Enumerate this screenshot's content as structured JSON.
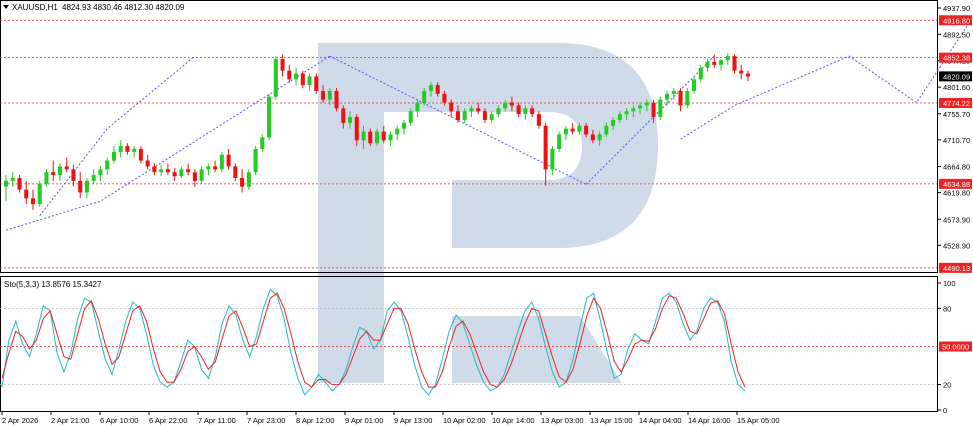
{
  "chart_data": {
    "type": "candlestick",
    "symbol": "XAUUSD,H1",
    "ohlc_text": "4824.93 4830.46 4812.30 4820.09",
    "main_panel": {
      "ylim": [
        4483,
        4950
      ],
      "y_ticks": [
        "4937.90",
        "4892.50",
        "4847.10",
        "4801.60",
        "4755.70",
        "4710.70",
        "4664.80",
        "4619.80",
        "4573.90",
        "4528.90"
      ],
      "levels": [
        {
          "label": "4916.80",
          "value": 4916.8
        },
        {
          "label": "4852.38",
          "value": 4852.38
        },
        {
          "label": "4774.22",
          "value": 4774.22
        },
        {
          "label": "4634.88",
          "value": 4634.88
        },
        {
          "label": "4490.13",
          "value": 4490.13
        }
      ],
      "current_price": {
        "label": "4820.09",
        "value": 4820.09
      },
      "candles": [
        [
          4630,
          4650,
          4605,
          4640
        ],
        [
          4640,
          4655,
          4630,
          4645
        ],
        [
          4645,
          4650,
          4620,
          4625
        ],
        [
          4625,
          4640,
          4600,
          4610
        ],
        [
          4610,
          4625,
          4590,
          4600
        ],
        [
          4600,
          4640,
          4595,
          4635
        ],
        [
          4635,
          4660,
          4630,
          4655
        ],
        [
          4655,
          4675,
          4640,
          4650
        ],
        [
          4650,
          4670,
          4640,
          4665
        ],
        [
          4665,
          4680,
          4655,
          4660
        ],
        [
          4660,
          4668,
          4630,
          4640
        ],
        [
          4640,
          4655,
          4610,
          4620
        ],
        [
          4620,
          4645,
          4610,
          4640
        ],
        [
          4640,
          4660,
          4635,
          4650
        ],
        [
          4650,
          4665,
          4640,
          4660
        ],
        [
          4660,
          4680,
          4650,
          4675
        ],
        [
          4675,
          4700,
          4670,
          4690
        ],
        [
          4690,
          4710,
          4680,
          4700
        ],
        [
          4700,
          4705,
          4685,
          4690
        ],
        [
          4690,
          4700,
          4680,
          4695
        ],
        [
          4695,
          4700,
          4670,
          4675
        ],
        [
          4675,
          4685,
          4660,
          4665
        ],
        [
          4665,
          4670,
          4650,
          4655
        ],
        [
          4655,
          4668,
          4648,
          4660
        ],
        [
          4660,
          4670,
          4650,
          4655
        ],
        [
          4655,
          4662,
          4640,
          4648
        ],
        [
          4648,
          4665,
          4645,
          4660
        ],
        [
          4660,
          4670,
          4650,
          4655
        ],
        [
          4655,
          4660,
          4630,
          4640
        ],
        [
          4640,
          4665,
          4635,
          4660
        ],
        [
          4660,
          4670,
          4650,
          4665
        ],
        [
          4665,
          4675,
          4655,
          4660
        ],
        [
          4660,
          4690,
          4655,
          4685
        ],
        [
          4685,
          4695,
          4660,
          4665
        ],
        [
          4665,
          4670,
          4640,
          4645
        ],
        [
          4645,
          4660,
          4620,
          4630
        ],
        [
          4630,
          4660,
          4625,
          4655
        ],
        [
          4655,
          4700,
          4650,
          4695
        ],
        [
          4695,
          4720,
          4690,
          4715
        ],
        [
          4715,
          4790,
          4710,
          4785
        ],
        [
          4785,
          4855,
          4780,
          4850
        ],
        [
          4850,
          4858,
          4820,
          4830
        ],
        [
          4830,
          4840,
          4810,
          4815
        ],
        [
          4815,
          4835,
          4805,
          4825
        ],
        [
          4825,
          4830,
          4800,
          4805
        ],
        [
          4805,
          4825,
          4795,
          4820
        ],
        [
          4820,
          4825,
          4790,
          4795
        ],
        [
          4795,
          4805,
          4775,
          4780
        ],
        [
          4780,
          4800,
          4770,
          4795
        ],
        [
          4795,
          4800,
          4760,
          4765
        ],
        [
          4765,
          4770,
          4730,
          4740
        ],
        [
          4740,
          4760,
          4730,
          4750
        ],
        [
          4750,
          4755,
          4700,
          4710
        ],
        [
          4710,
          4735,
          4695,
          4725
        ],
        [
          4725,
          4730,
          4700,
          4705
        ],
        [
          4705,
          4730,
          4700,
          4725
        ],
        [
          4725,
          4735,
          4705,
          4710
        ],
        [
          4710,
          4725,
          4700,
          4720
        ],
        [
          4720,
          4735,
          4710,
          4730
        ],
        [
          4730,
          4745,
          4720,
          4740
        ],
        [
          4740,
          4765,
          4735,
          4760
        ],
        [
          4760,
          4780,
          4750,
          4775
        ],
        [
          4775,
          4800,
          4770,
          4795
        ],
        [
          4795,
          4810,
          4785,
          4805
        ],
        [
          4805,
          4810,
          4785,
          4790
        ],
        [
          4790,
          4795,
          4770,
          4775
        ],
        [
          4775,
          4780,
          4750,
          4760
        ],
        [
          4760,
          4770,
          4740,
          4745
        ],
        [
          4745,
          4765,
          4740,
          4760
        ],
        [
          4760,
          4770,
          4750,
          4765
        ],
        [
          4765,
          4775,
          4755,
          4760
        ],
        [
          4760,
          4765,
          4740,
          4745
        ],
        [
          4745,
          4760,
          4740,
          4755
        ],
        [
          4755,
          4770,
          4750,
          4765
        ],
        [
          4765,
          4780,
          4760,
          4775
        ],
        [
          4775,
          4785,
          4760,
          4770
        ],
        [
          4770,
          4775,
          4750,
          4755
        ],
        [
          4755,
          4770,
          4745,
          4765
        ],
        [
          4765,
          4770,
          4750,
          4755
        ],
        [
          4755,
          4760,
          4730,
          4735
        ],
        [
          4735,
          4740,
          4632,
          4660
        ],
        [
          4660,
          4700,
          4650,
          4695
        ],
        [
          4695,
          4725,
          4690,
          4720
        ],
        [
          4720,
          4735,
          4710,
          4730
        ],
        [
          4730,
          4740,
          4720,
          4725
        ],
        [
          4725,
          4740,
          4720,
          4735
        ],
        [
          4735,
          4740,
          4715,
          4720
        ],
        [
          4720,
          4728,
          4705,
          4710
        ],
        [
          4710,
          4725,
          4700,
          4720
        ],
        [
          4720,
          4740,
          4715,
          4735
        ],
        [
          4735,
          4750,
          4728,
          4745
        ],
        [
          4745,
          4760,
          4740,
          4755
        ],
        [
          4755,
          4765,
          4745,
          4760
        ],
        [
          4760,
          4770,
          4750,
          4765
        ],
        [
          4765,
          4775,
          4755,
          4770
        ],
        [
          4770,
          4780,
          4760,
          4775
        ],
        [
          4775,
          4780,
          4740,
          4750
        ],
        [
          4750,
          4785,
          4745,
          4780
        ],
        [
          4780,
          4795,
          4770,
          4790
        ],
        [
          4790,
          4800,
          4780,
          4795
        ],
        [
          4795,
          4800,
          4760,
          4770
        ],
        [
          4770,
          4800,
          4765,
          4795
        ],
        [
          4795,
          4820,
          4790,
          4815
        ],
        [
          4815,
          4840,
          4810,
          4835
        ],
        [
          4835,
          4850,
          4828,
          4845
        ],
        [
          4845,
          4858,
          4835,
          4840
        ],
        [
          4840,
          4850,
          4830,
          4848
        ],
        [
          4848,
          4860,
          4840,
          4855
        ],
        [
          4855,
          4858,
          4825,
          4830
        ],
        [
          4830,
          4840,
          4815,
          4825
        ],
        [
          4825,
          4830,
          4812,
          4820
        ]
      ]
    },
    "x_ticks": [
      "2 Apr 2026",
      "2 Apr 21:00",
      "6 Apr 10:00",
      "6 Apr 22:00",
      "7 Apr 11:00",
      "7 Apr 23:00",
      "8 Apr 12:00",
      "9 Apr 01:00",
      "9 Apr 13:00",
      "10 Apr 02:00",
      "10 Apr 14:00",
      "13 Apr 03:00",
      "13 Apr 15:00",
      "14 Apr 04:00",
      "14 Apr 16:00",
      "15 Apr 05:00"
    ],
    "stochastic": {
      "label": "Sto(5,3,3) 13.8576 15.3427",
      "ylim": [
        0,
        100
      ],
      "y_ticks": [
        "100",
        "80",
        "20",
        "0"
      ],
      "mid_level": {
        "label": "50.0000",
        "value": 50
      },
      "series": [
        {
          "values": [
            18,
            55,
            70,
            52,
            42,
            60,
            82,
            78,
            45,
            30,
            45,
            72,
            88,
            85,
            62,
            40,
            28,
            48,
            70,
            85,
            80,
            60,
            35,
            22,
            18,
            22,
            38,
            55,
            50,
            32,
            25,
            42,
            68,
            82,
            75,
            55,
            42,
            58,
            80,
            95,
            90,
            72,
            45,
            25,
            12,
            18,
            28,
            22,
            15,
            20,
            32,
            50,
            65,
            62,
            48,
            55,
            78,
            85,
            78,
            58,
            35,
            18,
            12,
            20,
            40,
            62,
            75,
            68,
            52,
            35,
            22,
            15,
            18,
            28,
            45,
            62,
            78,
            85,
            72,
            50,
            30,
            18,
            22,
            40,
            65,
            88,
            92,
            70,
            45,
            25,
            28,
            48,
            60,
            55,
            52,
            70,
            88,
            92,
            85,
            68,
            55,
            62,
            80,
            88,
            85,
            70,
            38,
            20,
            15
          ]
        },
        {
          "values": [
            25,
            45,
            62,
            58,
            48,
            55,
            72,
            78,
            60,
            42,
            40,
            60,
            80,
            86,
            72,
            52,
            36,
            42,
            60,
            78,
            82,
            70,
            48,
            30,
            22,
            22,
            32,
            46,
            50,
            42,
            32,
            38,
            56,
            74,
            78,
            65,
            50,
            52,
            70,
            88,
            92,
            80,
            60,
            38,
            22,
            18,
            24,
            24,
            20,
            20,
            28,
            42,
            56,
            62,
            55,
            55,
            68,
            80,
            80,
            68,
            48,
            30,
            18,
            18,
            30,
            50,
            66,
            70,
            60,
            45,
            30,
            20,
            18,
            24,
            36,
            52,
            68,
            80,
            78,
            60,
            42,
            26,
            22,
            32,
            52,
            74,
            88,
            80,
            60,
            38,
            30,
            40,
            52,
            55,
            54,
            64,
            80,
            90,
            88,
            76,
            62,
            60,
            72,
            84,
            86,
            76,
            52,
            30,
            18
          ]
        }
      ]
    },
    "colors": {
      "bull": "#22cc22",
      "bear": "#ee1111",
      "level_line": "#ee2222",
      "forecast_line": "#4444ee",
      "stoch_main": "#22bbbb",
      "stoch_signal": "#ee2222",
      "watermark": "#cfdbe9"
    }
  }
}
